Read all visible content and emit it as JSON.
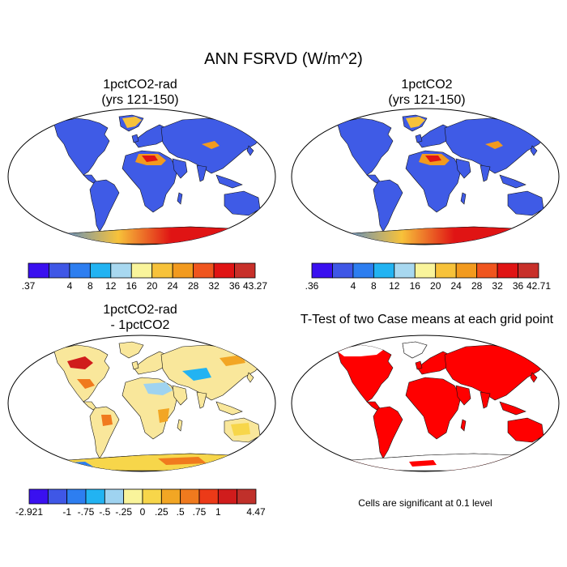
{
  "main_title": "ANN FSRVD (W/m^2)",
  "panels": [
    {
      "title_line1": "1pctCO2-rad",
      "title_line2": "(yrs 121-150)"
    },
    {
      "title_line1": "1pctCO2",
      "title_line2": "(yrs 121-150)"
    },
    {
      "title_line1": "1pctCO2-rad",
      "title_line2": "- 1pctCO2"
    },
    {
      "title_line1": "T-Test of two Case means at each grid point",
      "title_line2": ""
    }
  ],
  "footnote": "Cells are significant at 0.1 level",
  "chart_data": [
    {
      "type": "heatmap",
      "title": "1pctCO2-rad (yrs 121-150)",
      "colorbar": {
        "labels": [
          ".37",
          "4",
          "8",
          "12",
          "16",
          "20",
          "24",
          "28",
          "32",
          "36",
          "43.27"
        ],
        "colors": [
          "#3a10f0",
          "#3f57e6",
          "#2d7ef0",
          "#22b3f2",
          "#a8d8f0",
          "#f9f49b",
          "#f7c23a",
          "#f29a1e",
          "#f0551e",
          "#e01414",
          "#c8302a"
        ]
      }
    },
    {
      "type": "heatmap",
      "title": "1pctCO2 (yrs 121-150)",
      "colorbar": {
        "labels": [
          ".36",
          "4",
          "8",
          "12",
          "16",
          "20",
          "24",
          "28",
          "32",
          "36",
          "42.71"
        ],
        "colors": [
          "#3a10f0",
          "#3f57e6",
          "#2d7ef0",
          "#22b3f2",
          "#a8d8f0",
          "#f9f49b",
          "#f7c23a",
          "#f29a1e",
          "#f0551e",
          "#e01414",
          "#c8302a"
        ]
      }
    },
    {
      "type": "heatmap",
      "title": "1pctCO2-rad - 1pctCO2",
      "colorbar": {
        "labels": [
          "-2.921",
          "-1",
          "-.75",
          "-.5",
          "-.25",
          "0",
          ".25",
          ".5",
          ".75",
          "1",
          "4.47"
        ],
        "colors": [
          "#3a10f0",
          "#3f57e6",
          "#2d7ef0",
          "#22b3f2",
          "#9fd3f0",
          "#f9f49b",
          "#f7d64a",
          "#f2a624",
          "#f07a1e",
          "#ec3a18",
          "#d01c1c",
          "#c0302a"
        ]
      }
    },
    {
      "type": "heatmap",
      "title": "T-Test of two Case means at each grid point",
      "significance_color": "#ff0000"
    }
  ]
}
